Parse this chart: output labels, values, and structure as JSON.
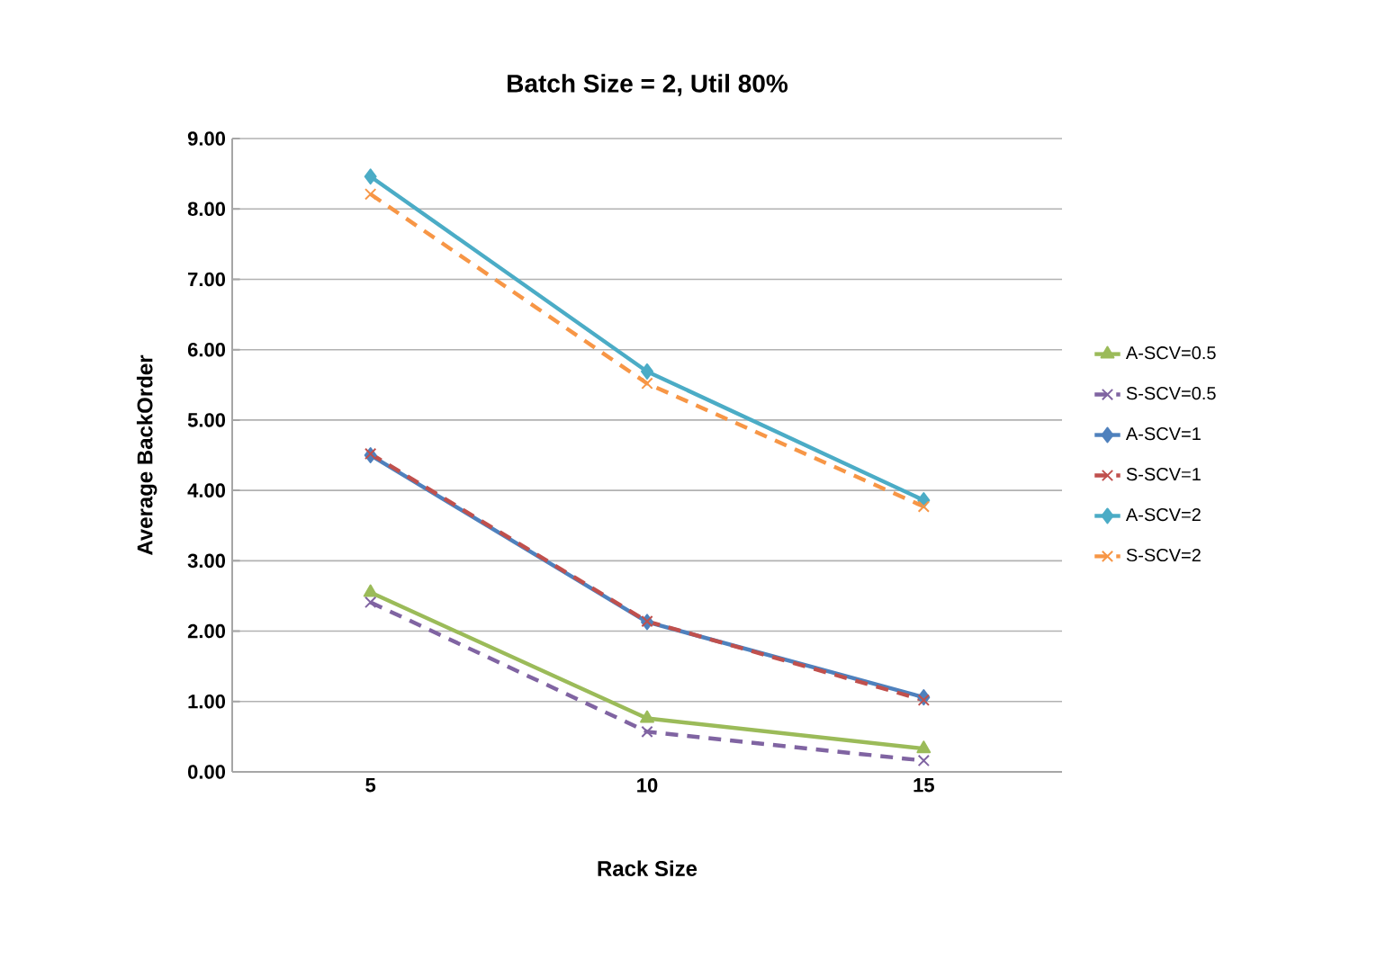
{
  "chart_data": {
    "type": "line",
    "title": "Batch Size = 2, Util 80%",
    "xlabel": "Rack Size",
    "ylabel": "Average BackOrder",
    "categories": [
      "5",
      "10",
      "15"
    ],
    "ylim": [
      0,
      9
    ],
    "yticks": [
      {
        "value": 0,
        "label": "0.00"
      },
      {
        "value": 1,
        "label": "1.00"
      },
      {
        "value": 2,
        "label": "2.00"
      },
      {
        "value": 3,
        "label": "3.00"
      },
      {
        "value": 4,
        "label": "4.00"
      },
      {
        "value": 5,
        "label": "5.00"
      },
      {
        "value": 6,
        "label": "6.00"
      },
      {
        "value": 7,
        "label": "7.00"
      },
      {
        "value": 8,
        "label": "8.00"
      },
      {
        "value": 9,
        "label": "9.00"
      }
    ],
    "grid": "y",
    "legend": "right",
    "series": [
      {
        "name": "A-SCV=0.5",
        "color": "#9bbb59",
        "marker": "triangle",
        "line_style": "solid",
        "values": [
          2.55,
          0.76,
          0.33
        ]
      },
      {
        "name": "S-SCV=0.5",
        "color": "#8064a2",
        "marker": "cross",
        "line_style": "dashed",
        "values": [
          2.41,
          0.57,
          0.16
        ]
      },
      {
        "name": "A-SCV=1",
        "color": "#4f81bd",
        "marker": "diamond",
        "line_style": "solid",
        "values": [
          4.5,
          2.13,
          1.06
        ]
      },
      {
        "name": "S-SCV=1",
        "color": "#c0504d",
        "marker": "cross",
        "line_style": "dashed",
        "values": [
          4.52,
          2.14,
          1.02
        ]
      },
      {
        "name": "A-SCV=2",
        "color": "#4bacc6",
        "marker": "diamond",
        "line_style": "solid",
        "values": [
          8.46,
          5.69,
          3.86
        ]
      },
      {
        "name": "S-SCV=2",
        "color": "#f79646",
        "marker": "cross",
        "line_style": "dashed",
        "values": [
          8.21,
          5.52,
          3.77
        ]
      }
    ]
  }
}
